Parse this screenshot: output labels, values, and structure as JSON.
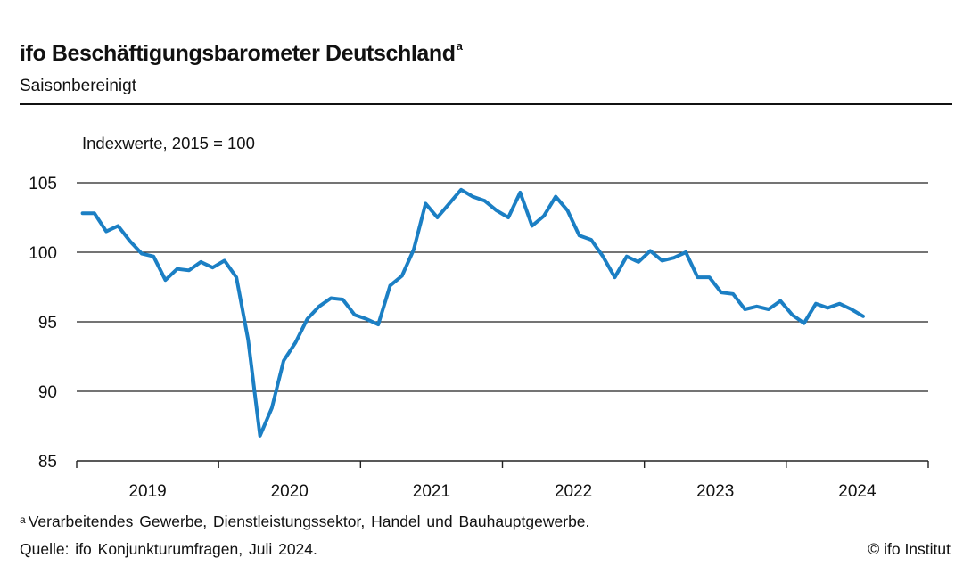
{
  "header": {
    "title": "ifo Beschäftigungsbarometer Deutschland",
    "title_marker": "a",
    "subtitle": "Saisonbereinigt"
  },
  "chart_data": {
    "type": "line",
    "unit_label": "Indexwerte, 2015 = 100",
    "ylim": [
      85,
      105
    ],
    "yticks": [
      105,
      100,
      95,
      90,
      85
    ],
    "x_years": [
      "2019",
      "2020",
      "2021",
      "2022",
      "2023",
      "2024"
    ],
    "grid": true,
    "color": "#1b7fc4",
    "series": [
      {
        "x": [
          "2019-01",
          "2019-02",
          "2019-03",
          "2019-04",
          "2019-05",
          "2019-06",
          "2019-07",
          "2019-08",
          "2019-09",
          "2019-10",
          "2019-11",
          "2019-12",
          "2020-01",
          "2020-02",
          "2020-03",
          "2020-04",
          "2020-05",
          "2020-06",
          "2020-07",
          "2020-08",
          "2020-09",
          "2020-10",
          "2020-11",
          "2020-12",
          "2021-01",
          "2021-02",
          "2021-03",
          "2021-04",
          "2021-05",
          "2021-06",
          "2021-07",
          "2021-08",
          "2021-09",
          "2021-10",
          "2021-11",
          "2021-12",
          "2022-01",
          "2022-02",
          "2022-03",
          "2022-04",
          "2022-05",
          "2022-06",
          "2022-07",
          "2022-08",
          "2022-09",
          "2022-10",
          "2022-11",
          "2022-12",
          "2023-01",
          "2023-02",
          "2023-03",
          "2023-04",
          "2023-05",
          "2023-06",
          "2023-07",
          "2023-08",
          "2023-09",
          "2023-10",
          "2023-11",
          "2023-12",
          "2024-01",
          "2024-02",
          "2024-03",
          "2024-04",
          "2024-05",
          "2024-06",
          "2024-07"
        ],
        "values": [
          102.8,
          102.8,
          101.5,
          101.9,
          100.8,
          99.9,
          99.7,
          98.0,
          98.8,
          98.7,
          99.3,
          98.9,
          99.4,
          98.2,
          93.7,
          86.8,
          88.8,
          92.2,
          93.5,
          95.2,
          96.1,
          96.7,
          96.6,
          95.5,
          95.2,
          94.8,
          97.6,
          98.3,
          100.2,
          103.5,
          102.5,
          103.5,
          104.5,
          104.0,
          103.7,
          103.0,
          102.5,
          104.3,
          101.9,
          102.6,
          104.0,
          103.0,
          101.2,
          100.9,
          99.7,
          98.2,
          99.7,
          99.3,
          100.1,
          99.4,
          99.6,
          100.0,
          98.2,
          98.2,
          97.1,
          97.0,
          95.9,
          96.1,
          95.9,
          96.5,
          95.5,
          94.9,
          96.3,
          96.0,
          96.3,
          95.9,
          95.4
        ]
      }
    ]
  },
  "footer": {
    "footnote_marker": "a",
    "footnote": "Verarbeitendes Gewerbe, Dienstleistungssektor, Handel und Bauhauptgewerbe.",
    "source": "Quelle: ifo Konjunkturumfragen, Juli 2024.",
    "credit": "© ifo Institut"
  }
}
